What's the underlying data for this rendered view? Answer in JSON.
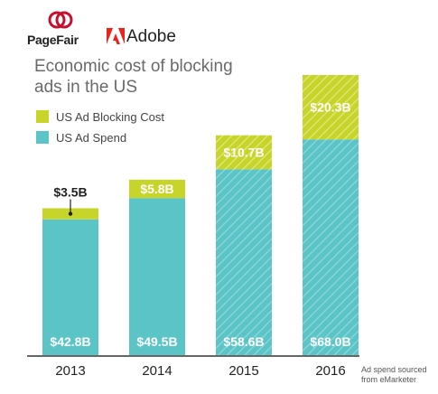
{
  "logos": {
    "pagefair": "PageFair",
    "adobe": "Adobe"
  },
  "colors": {
    "spend": "#5bc4c7",
    "blocking": "#c7d42a",
    "axis": "#333333",
    "spend_hatch": "#8fd7da",
    "blocking_hatch": "#e0ea7e",
    "pagefair_red": "#c8102e",
    "adobe_red": "#e8241c"
  },
  "footnote": "Ad spend sourced from eMarketer",
  "chart_data": {
    "type": "bar",
    "stacked": true,
    "title": "Economic cost of blocking ads in the US",
    "xlabel": "",
    "ylabel": "",
    "categories": [
      "2013",
      "2014",
      "2015",
      "2016"
    ],
    "series": [
      {
        "name": "US Ad Spend",
        "values": [
          42.8,
          49.5,
          58.6,
          68.0
        ],
        "labels": [
          "$42.8B",
          "$49.5B",
          "$58.6B",
          "$68.0B"
        ]
      },
      {
        "name": "US Ad Blocking Cost",
        "values": [
          3.5,
          5.8,
          10.7,
          20.3
        ],
        "labels": [
          "$3.5B",
          "$5.8B",
          "$10.7B",
          "$20.3B"
        ]
      }
    ],
    "hatched_categories": [
      "2015",
      "2016"
    ],
    "ylim": [
      0,
      88.3
    ],
    "grid": false,
    "legend": "top-left"
  }
}
